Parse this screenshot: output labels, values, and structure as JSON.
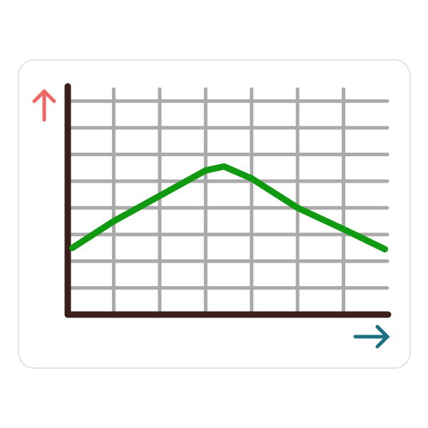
{
  "chart_data": {
    "type": "line",
    "x": [
      0.1,
      1,
      2,
      3,
      3.4,
      4,
      5,
      6,
      6.9
    ],
    "series": [
      {
        "color": "#119911",
        "values": [
          2.5,
          3.5,
          4.45,
          5.4,
          5.55,
          5.1,
          4.0,
          3.2,
          2.45
        ]
      }
    ],
    "xlim": [
      0,
      7
    ],
    "ylim": [
      0,
      8.5
    ],
    "xticks": [
      1,
      2,
      3,
      4,
      5,
      6
    ],
    "yticks": [
      1,
      2,
      3,
      4,
      5,
      6,
      7,
      8
    ],
    "grid": true,
    "grid_color": "#aaaaaa",
    "axis_color": "#3a1f1a"
  }
}
